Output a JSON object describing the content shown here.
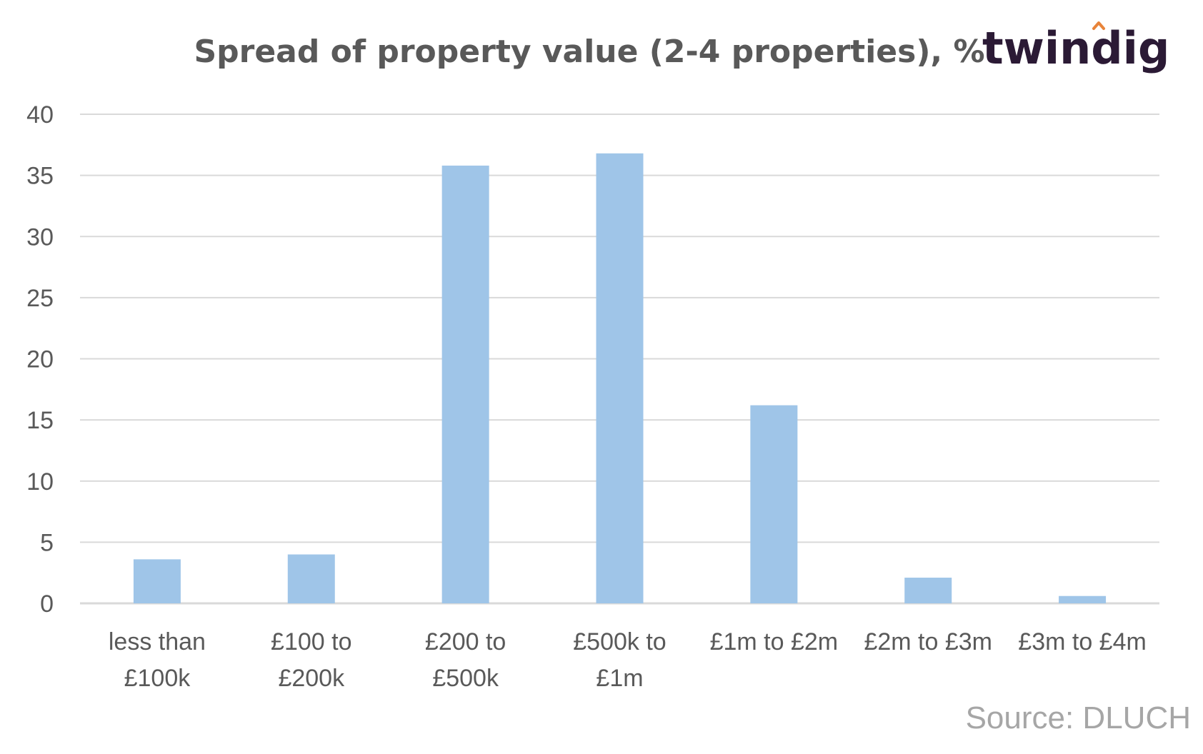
{
  "brand": {
    "name": "twindig",
    "text_color": "#2b1a35",
    "accent_color": "#e8843a"
  },
  "source_note": "Source: DLUCH",
  "colors": {
    "bar": "#9fc5e8",
    "grid": "#d9d9d9",
    "text": "#595959"
  },
  "chart_data": {
    "type": "bar",
    "title": "Spread of property value (2-4 properties), %",
    "xlabel": "",
    "ylabel": "",
    "ylim": [
      0,
      40
    ],
    "yticks": [
      0,
      5,
      10,
      15,
      20,
      25,
      30,
      35,
      40
    ],
    "grid": true,
    "categories": [
      [
        "less than",
        "£100k"
      ],
      [
        "£100 to",
        "£200k"
      ],
      [
        "£200 to",
        "£500k"
      ],
      [
        "£500k to",
        "£1m"
      ],
      [
        "£1m to £2m"
      ],
      [
        "£2m to £3m"
      ],
      [
        "£3m to £4m"
      ]
    ],
    "values": [
      3.6,
      4.0,
      35.8,
      36.8,
      16.2,
      2.1,
      0.6
    ]
  }
}
